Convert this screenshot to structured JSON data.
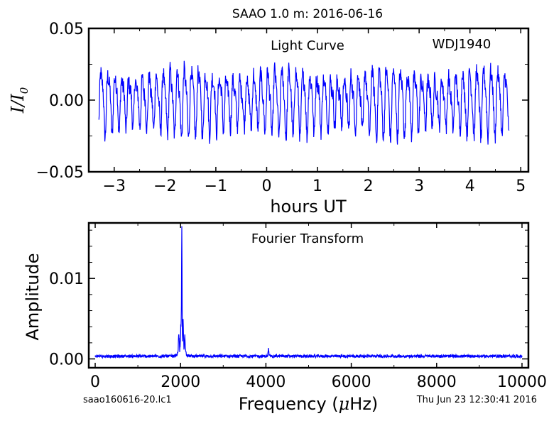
{
  "figure": {
    "title": "SAAO 1.0 m:  2016-06-16",
    "footer_left": "saao160616-20.lc1",
    "footer_right": "Thu Jun 23 12:30:41 2016",
    "line_color": "#0000ff"
  },
  "chart_data": [
    {
      "type": "line",
      "panel": "light-curve",
      "annotations": [
        "Light Curve",
        "WDJ1940"
      ],
      "xlabel": "hours UT",
      "ylabel_symbol": "I",
      "ylabel_denominator": "I",
      "ylabel_subscript": "0",
      "xlim": [
        -3.5,
        5.15
      ],
      "ylim": [
        -0.05,
        0.05
      ],
      "xticks": [
        -3,
        -2,
        -1,
        0,
        1,
        2,
        3,
        4,
        5
      ],
      "xtick_labels": [
        "−3",
        "−2",
        "−1",
        "0",
        "1",
        "2",
        "3",
        "4",
        "5"
      ],
      "yticks": [
        -0.05,
        0.0,
        0.05
      ],
      "ytick_labels": [
        "−0.05",
        "0.00",
        "0.05"
      ],
      "x_start": -3.3,
      "x_end": 4.77,
      "dominant_period_hours": 0.137,
      "amplitude": 0.018,
      "envelope": [
        -0.031,
        0.031
      ]
    },
    {
      "type": "line",
      "panel": "fourier-transform",
      "annotations": [
        "Fourier Transform"
      ],
      "xlabel": "Frequency (",
      "xlabel_mu": "μ",
      "xlabel_unit": "Hz)",
      "ylabel": "Amplitude",
      "xlim": [
        -150,
        10150
      ],
      "ylim": [
        -0.0011,
        0.0169
      ],
      "xticks": [
        0,
        2000,
        4000,
        6000,
        8000,
        10000
      ],
      "xtick_labels": [
        "0",
        "2000",
        "4000",
        "6000",
        "8000",
        "10000"
      ],
      "yticks": [
        0.0,
        0.01
      ],
      "ytick_labels": [
        "0.00",
        "0.01"
      ],
      "peaks": [
        {
          "x": 2030,
          "y": 0.0153
        },
        {
          "x": 2010,
          "y": 0.003
        },
        {
          "x": 2060,
          "y": 0.0033
        },
        {
          "x": 1960,
          "y": 0.0022
        },
        {
          "x": 2100,
          "y": 0.002
        },
        {
          "x": 4060,
          "y": 0.0009
        }
      ],
      "noise_level": 0.0004
    }
  ]
}
